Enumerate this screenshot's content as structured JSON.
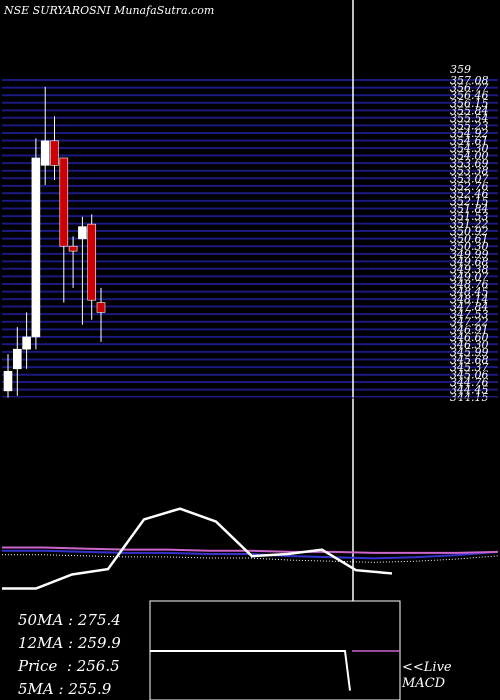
{
  "header": {
    "title": "NSE SURYAROSNI MunafaSutra.com"
  },
  "colors": {
    "background": "#000000",
    "up_candle": "#ffffff",
    "down_candle": "#cc0000",
    "grid": "#1a1a80",
    "grid_fill": "#0a0a3a",
    "macd_line": "#ffffff",
    "ma_purple": "#cc66cc",
    "ma_blue": "#3333cc",
    "ma_dotted": "#ffffff"
  },
  "chart_data": [
    {
      "type": "candlestick",
      "title": "NSE SURYAROSNI MunafaSutra.com",
      "price_range": [
        344.15,
        357.08
      ],
      "top_labels": [
        "359",
        "357.08"
      ],
      "price_ticks": [
        357.08,
        356.77,
        356.46,
        356.15,
        355.84,
        355.54,
        355.23,
        354.92,
        354.61,
        354.3,
        354.0,
        353.69,
        353.38,
        353.07,
        352.76,
        352.46,
        352.15,
        351.84,
        351.53,
        351.22,
        350.92,
        350.61,
        350.3,
        349.99,
        349.68,
        349.38,
        349.07,
        348.76,
        348.45,
        348.14,
        347.84,
        347.53,
        347.22,
        346.91,
        346.6,
        346.3,
        345.99,
        345.68,
        345.37,
        345.06,
        344.76,
        344.45,
        344.15
      ],
      "candles": [
        {
          "open": 344.4,
          "high": 345.9,
          "low": 344.1,
          "close": 345.2
        },
        {
          "open": 345.3,
          "high": 347.0,
          "low": 344.2,
          "close": 346.1
        },
        {
          "open": 346.1,
          "high": 347.6,
          "low": 345.3,
          "close": 346.6
        },
        {
          "open": 346.6,
          "high": 354.7,
          "low": 346.1,
          "close": 353.9
        },
        {
          "open": 353.6,
          "high": 356.8,
          "low": 352.8,
          "close": 354.6
        },
        {
          "open": 354.6,
          "high": 355.6,
          "low": 353.0,
          "close": 353.6
        },
        {
          "open": 353.9,
          "high": 353.9,
          "low": 348.0,
          "close": 350.3
        },
        {
          "open": 350.3,
          "high": 350.7,
          "low": 348.6,
          "close": 350.1
        },
        {
          "open": 350.6,
          "high": 351.5,
          "low": 347.1,
          "close": 351.1
        },
        {
          "open": 351.2,
          "high": 351.6,
          "low": 347.3,
          "close": 348.1
        },
        {
          "open": 348.0,
          "high": 348.6,
          "low": 346.4,
          "close": 347.6
        }
      ]
    },
    {
      "type": "line",
      "series": [
        {
          "values": [
            1.8,
            1.8,
            3.1,
            3.6,
            8.2,
            9.2,
            8.0,
            4.8,
            5.0,
            5.4,
            3.5,
            3.2
          ]
        },
        {
          "values": [
            5.6,
            5.6,
            5.5,
            5.4,
            5.4,
            5.3,
            5.3,
            5.2,
            5.2,
            5.1,
            5.1,
            5.1,
            5.2
          ]
        },
        {
          "values": [
            5.3,
            5.3,
            5.2,
            5.1,
            5.1,
            5.0,
            5.0,
            4.8,
            4.7,
            4.6,
            4.7,
            4.9,
            5.2
          ]
        }
      ]
    },
    {
      "type": "line",
      "series": [
        {
          "values": [
            0,
            0,
            0,
            0,
            0,
            0,
            -1.8
          ]
        }
      ]
    }
  ],
  "legend": {
    "ma50": "50MA : 275.4",
    "ma12": "12MA : 259.9",
    "price": "Price  : 256.5",
    "ma5": "5MA : 255.9",
    "live": "<<Live",
    "macd": "MACD"
  }
}
